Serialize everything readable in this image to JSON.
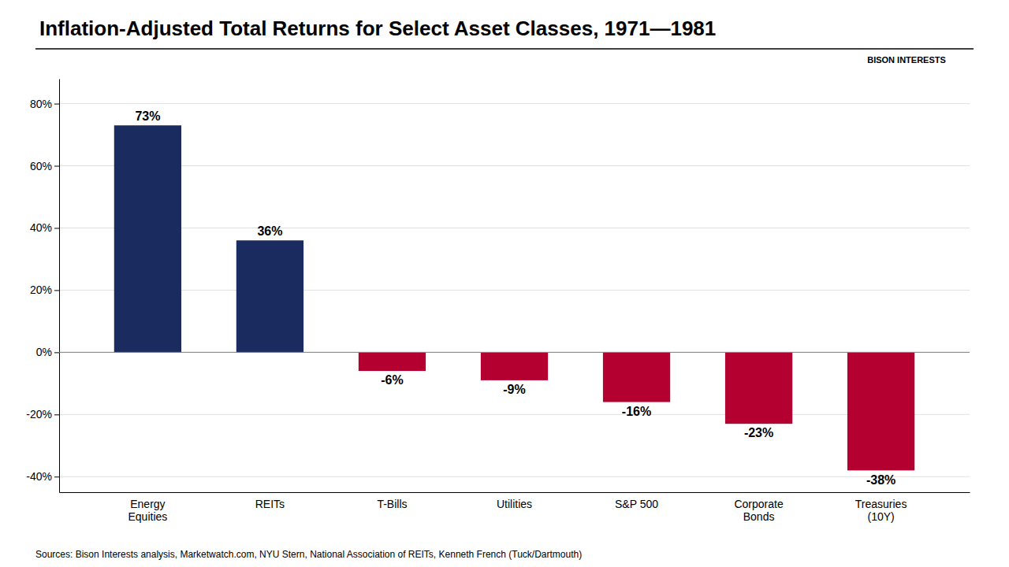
{
  "chart_data": {
    "type": "bar",
    "title": "Inflation-Adjusted Total Returns for Select Asset Classes, 1971—1981",
    "categories": [
      "Energy\nEquities",
      "REITs",
      "T-Bills",
      "Utilities",
      "S&P 500",
      "Corporate\nBonds",
      "Treasuries\n(10Y)"
    ],
    "values": [
      73,
      36,
      -6,
      -9,
      -16,
      -23,
      -38
    ],
    "value_labels": [
      "73%",
      "36%",
      "-6%",
      "-9%",
      "-16%",
      "-23%",
      "-38%"
    ],
    "colors": [
      "#1a2b5f",
      "#1a2b5f",
      "#b30030",
      "#b30030",
      "#b30030",
      "#b30030",
      "#b30030"
    ],
    "ylim": [
      -45,
      88
    ],
    "yticks": [
      {
        "value": -40,
        "label": "-40%"
      },
      {
        "value": -20,
        "label": "-20%"
      },
      {
        "value": 0,
        "label": "0%"
      },
      {
        "value": 20,
        "label": "20%"
      },
      {
        "value": 40,
        "label": "40%"
      },
      {
        "value": 60,
        "label": "60%"
      },
      {
        "value": 80,
        "label": "80%"
      }
    ],
    "grid": true,
    "data_labels": true,
    "annotations": [
      "BISON INTERESTS"
    ],
    "source": "Sources: Bison Interests analysis, Marketwatch.com, NYU Stern, National Association of REITs, Kenneth French (Tuck/Dartmouth)"
  }
}
